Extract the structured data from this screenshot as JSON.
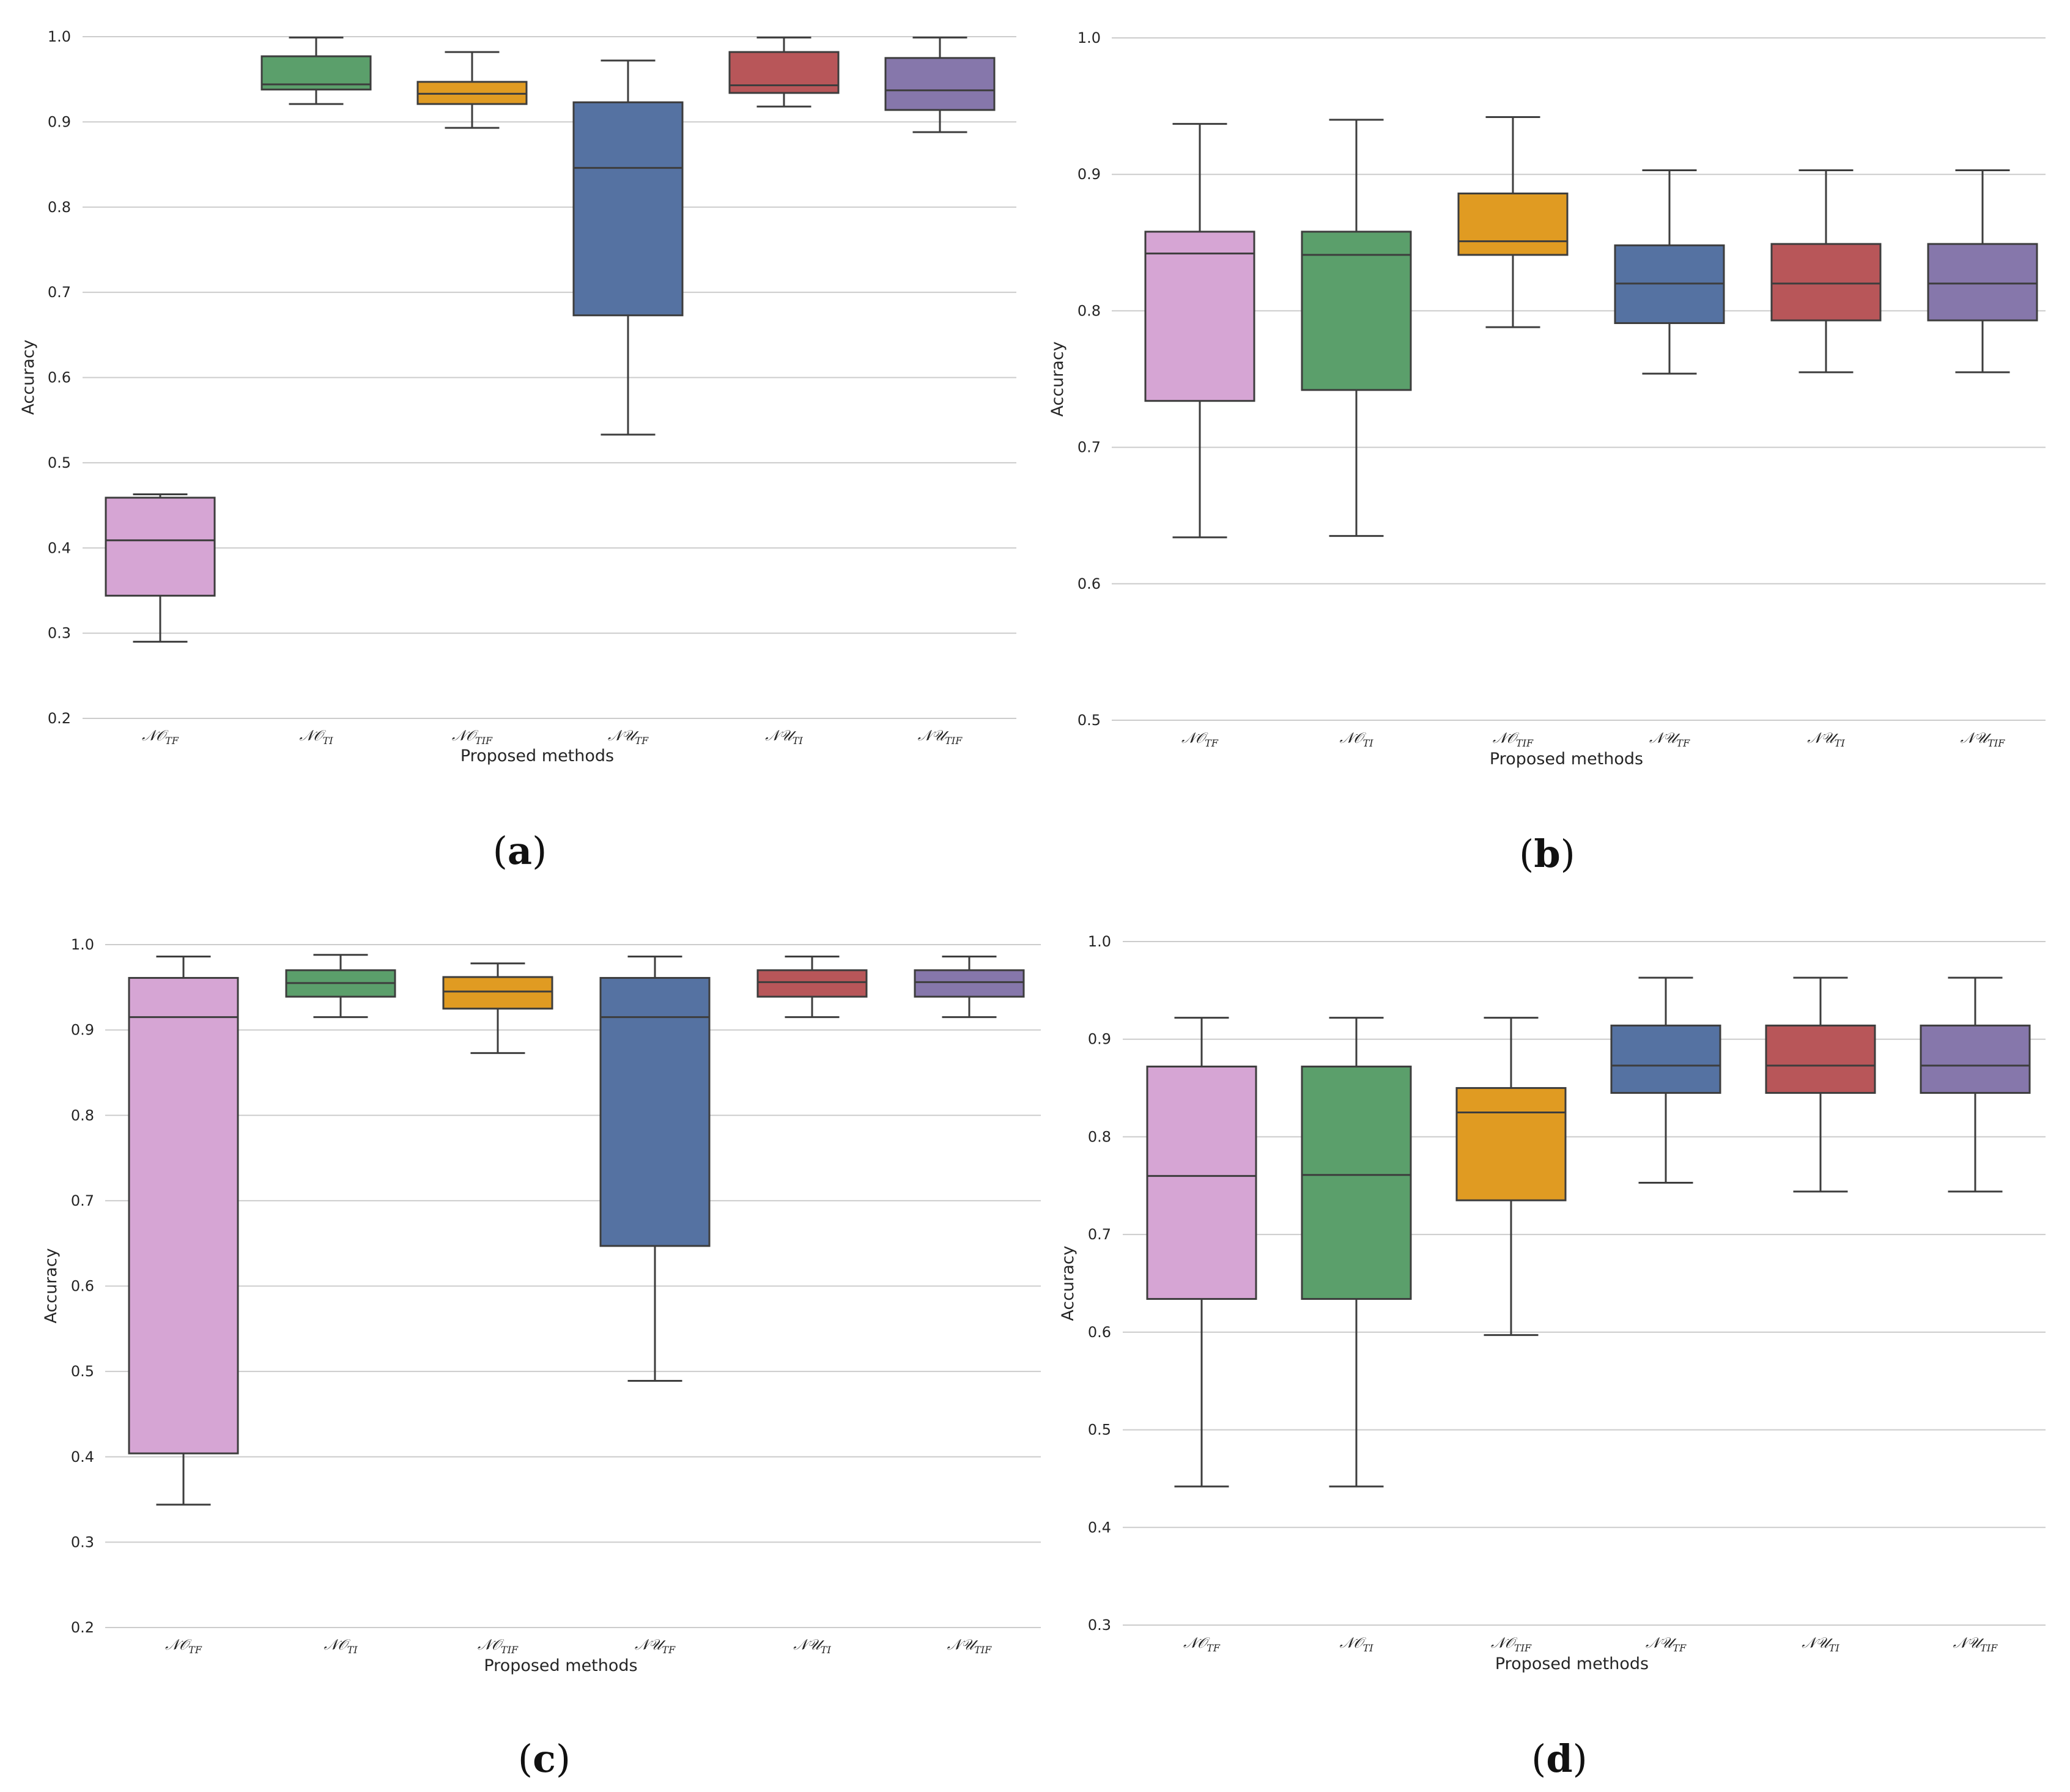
{
  "chart_data": [
    {
      "type": "box",
      "panel_label": "a",
      "xlabel": "Proposed methods",
      "ylabel": "Accuracy",
      "ylim": [
        0.2,
        1.0
      ],
      "yticks": [
        "0.2",
        "0.3",
        "0.4",
        "0.5",
        "0.6",
        "0.7",
        "0.8",
        "0.9",
        "1.0"
      ],
      "categories": [
        {
          "main": "𝒩𝒪",
          "sub": "TF"
        },
        {
          "main": "𝒩𝒪",
          "sub": "TI"
        },
        {
          "main": "𝒩𝒪",
          "sub": "TIF"
        },
        {
          "main": "𝒩𝒰",
          "sub": "TF"
        },
        {
          "main": "𝒩𝒰",
          "sub": "TI"
        },
        {
          "main": "𝒩𝒰",
          "sub": "TIF"
        }
      ],
      "boxes": [
        {
          "min": 0.29,
          "q1": 0.344,
          "median": 0.409,
          "q3": 0.459,
          "max": 0.463
        },
        {
          "min": 0.921,
          "q1": 0.938,
          "median": 0.944,
          "q3": 0.977,
          "max": 0.999
        },
        {
          "min": 0.893,
          "q1": 0.921,
          "median": 0.933,
          "q3": 0.947,
          "max": 0.982
        },
        {
          "min": 0.533,
          "q1": 0.673,
          "median": 0.846,
          "q3": 0.923,
          "max": 0.972
        },
        {
          "min": 0.918,
          "q1": 0.934,
          "median": 0.943,
          "q3": 0.982,
          "max": 0.999
        },
        {
          "min": 0.888,
          "q1": 0.914,
          "median": 0.937,
          "q3": 0.975,
          "max": 0.999
        }
      ]
    },
    {
      "type": "box",
      "panel_label": "b",
      "xlabel": "Proposed methods",
      "ylabel": "Accuracy",
      "ylim": [
        0.5,
        1.0
      ],
      "yticks": [
        "0.5",
        "0.6",
        "0.7",
        "0.8",
        "0.9",
        "1.0"
      ],
      "categories": [
        {
          "main": "𝒩𝒪",
          "sub": "TF"
        },
        {
          "main": "𝒩𝒪",
          "sub": "TI"
        },
        {
          "main": "𝒩𝒪",
          "sub": "TIF"
        },
        {
          "main": "𝒩𝒰",
          "sub": "TF"
        },
        {
          "main": "𝒩𝒰",
          "sub": "TI"
        },
        {
          "main": "𝒩𝒰",
          "sub": "TIF"
        }
      ],
      "boxes": [
        {
          "min": 0.634,
          "q1": 0.734,
          "median": 0.842,
          "q3": 0.858,
          "max": 0.937
        },
        {
          "min": 0.635,
          "q1": 0.742,
          "median": 0.841,
          "q3": 0.858,
          "max": 0.94
        },
        {
          "min": 0.788,
          "q1": 0.841,
          "median": 0.851,
          "q3": 0.886,
          "max": 0.942
        },
        {
          "min": 0.754,
          "q1": 0.791,
          "median": 0.82,
          "q3": 0.848,
          "max": 0.903
        },
        {
          "min": 0.755,
          "q1": 0.793,
          "median": 0.82,
          "q3": 0.849,
          "max": 0.903
        },
        {
          "min": 0.755,
          "q1": 0.793,
          "median": 0.82,
          "q3": 0.849,
          "max": 0.903
        }
      ]
    },
    {
      "type": "box",
      "panel_label": "c",
      "xlabel": "Proposed methods",
      "ylabel": "Accuracy",
      "ylim": [
        0.2,
        1.0
      ],
      "yticks": [
        "0.2",
        "0.3",
        "0.4",
        "0.5",
        "0.6",
        "0.7",
        "0.8",
        "0.9",
        "1.0"
      ],
      "categories": [
        {
          "main": "𝒩𝒪",
          "sub": "TF"
        },
        {
          "main": "𝒩𝒪",
          "sub": "TI"
        },
        {
          "main": "𝒩𝒪",
          "sub": "TIF"
        },
        {
          "main": "𝒩𝒰",
          "sub": "TF"
        },
        {
          "main": "𝒩𝒰",
          "sub": "TI"
        },
        {
          "main": "𝒩𝒰",
          "sub": "TIF"
        }
      ],
      "boxes": [
        {
          "min": 0.344,
          "q1": 0.404,
          "median": 0.915,
          "q3": 0.961,
          "max": 0.986
        },
        {
          "min": 0.915,
          "q1": 0.939,
          "median": 0.955,
          "q3": 0.97,
          "max": 0.988
        },
        {
          "min": 0.873,
          "q1": 0.925,
          "median": 0.945,
          "q3": 0.962,
          "max": 0.978
        },
        {
          "min": 0.489,
          "q1": 0.647,
          "median": 0.915,
          "q3": 0.961,
          "max": 0.986
        },
        {
          "min": 0.915,
          "q1": 0.939,
          "median": 0.956,
          "q3": 0.97,
          "max": 0.986
        },
        {
          "min": 0.915,
          "q1": 0.939,
          "median": 0.956,
          "q3": 0.97,
          "max": 0.986
        }
      ]
    },
    {
      "type": "box",
      "panel_label": "d",
      "xlabel": "Proposed methods",
      "ylabel": "Accuracy",
      "ylim": [
        0.3,
        1.0
      ],
      "yticks": [
        "0.3",
        "0.4",
        "0.5",
        "0.6",
        "0.7",
        "0.8",
        "0.9",
        "1.0"
      ],
      "categories": [
        {
          "main": "𝒩𝒪",
          "sub": "TF"
        },
        {
          "main": "𝒩𝒪",
          "sub": "TI"
        },
        {
          "main": "𝒩𝒪",
          "sub": "TIF"
        },
        {
          "main": "𝒩𝒰",
          "sub": "TF"
        },
        {
          "main": "𝒩𝒰",
          "sub": "TI"
        },
        {
          "main": "𝒩𝒰",
          "sub": "TIF"
        }
      ],
      "boxes": [
        {
          "min": 0.442,
          "q1": 0.634,
          "median": 0.76,
          "q3": 0.872,
          "max": 0.922
        },
        {
          "min": 0.442,
          "q1": 0.634,
          "median": 0.761,
          "q3": 0.872,
          "max": 0.922
        },
        {
          "min": 0.597,
          "q1": 0.735,
          "median": 0.825,
          "q3": 0.85,
          "max": 0.922
        },
        {
          "min": 0.753,
          "q1": 0.845,
          "median": 0.873,
          "q3": 0.914,
          "max": 0.963
        },
        {
          "min": 0.744,
          "q1": 0.845,
          "median": 0.873,
          "q3": 0.914,
          "max": 0.963
        },
        {
          "min": 0.744,
          "q1": 0.845,
          "median": 0.873,
          "q3": 0.914,
          "max": 0.963
        }
      ]
    }
  ],
  "colors": [
    "#d6a5d4",
    "#5b9f6b",
    "#e09b22",
    "#5572a2",
    "#b85659",
    "#8677ab"
  ]
}
